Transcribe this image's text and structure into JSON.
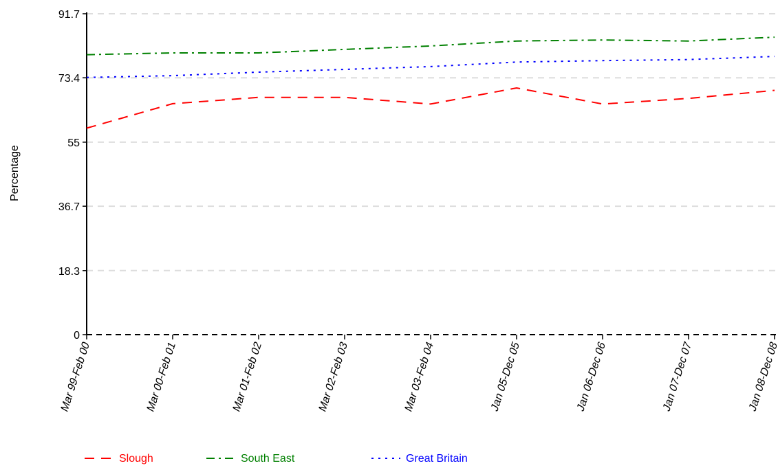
{
  "chart_data": {
    "type": "line",
    "title": "",
    "xlabel": "",
    "ylabel": "Percentage",
    "categories": [
      "Mar 99-Feb 00",
      "Mar 00-Feb 01",
      "Mar 01-Feb 02",
      "Mar 02-Feb 03",
      "Mar 03-Feb 04",
      "Jan 05-Dec 05",
      "Jan 06-Dec 06",
      "Jan 07-Dec 07",
      "Jan 08-Dec 08"
    ],
    "yticks": [
      "0",
      "18.3",
      "36.7",
      "55",
      "73.4",
      "91.7"
    ],
    "ylim": [
      0,
      91.7
    ],
    "grid": true,
    "legend_position": "bottom",
    "series": [
      {
        "name": "Slough",
        "color": "#ff0000",
        "dash": "dashed",
        "values": [
          59.0,
          66.0,
          67.8,
          67.8,
          65.9,
          70.5,
          65.9,
          67.5,
          69.8
        ]
      },
      {
        "name": "South East",
        "color": "#008000",
        "dash": "dash-dot",
        "values": [
          80.0,
          80.5,
          80.5,
          81.5,
          82.5,
          83.9,
          84.2,
          83.9,
          85.0
        ]
      },
      {
        "name": "Great Britain",
        "color": "#0000ff",
        "dash": "dotted",
        "values": [
          73.5,
          74.0,
          75.0,
          75.8,
          76.6,
          77.9,
          78.3,
          78.6,
          79.5
        ]
      }
    ]
  }
}
